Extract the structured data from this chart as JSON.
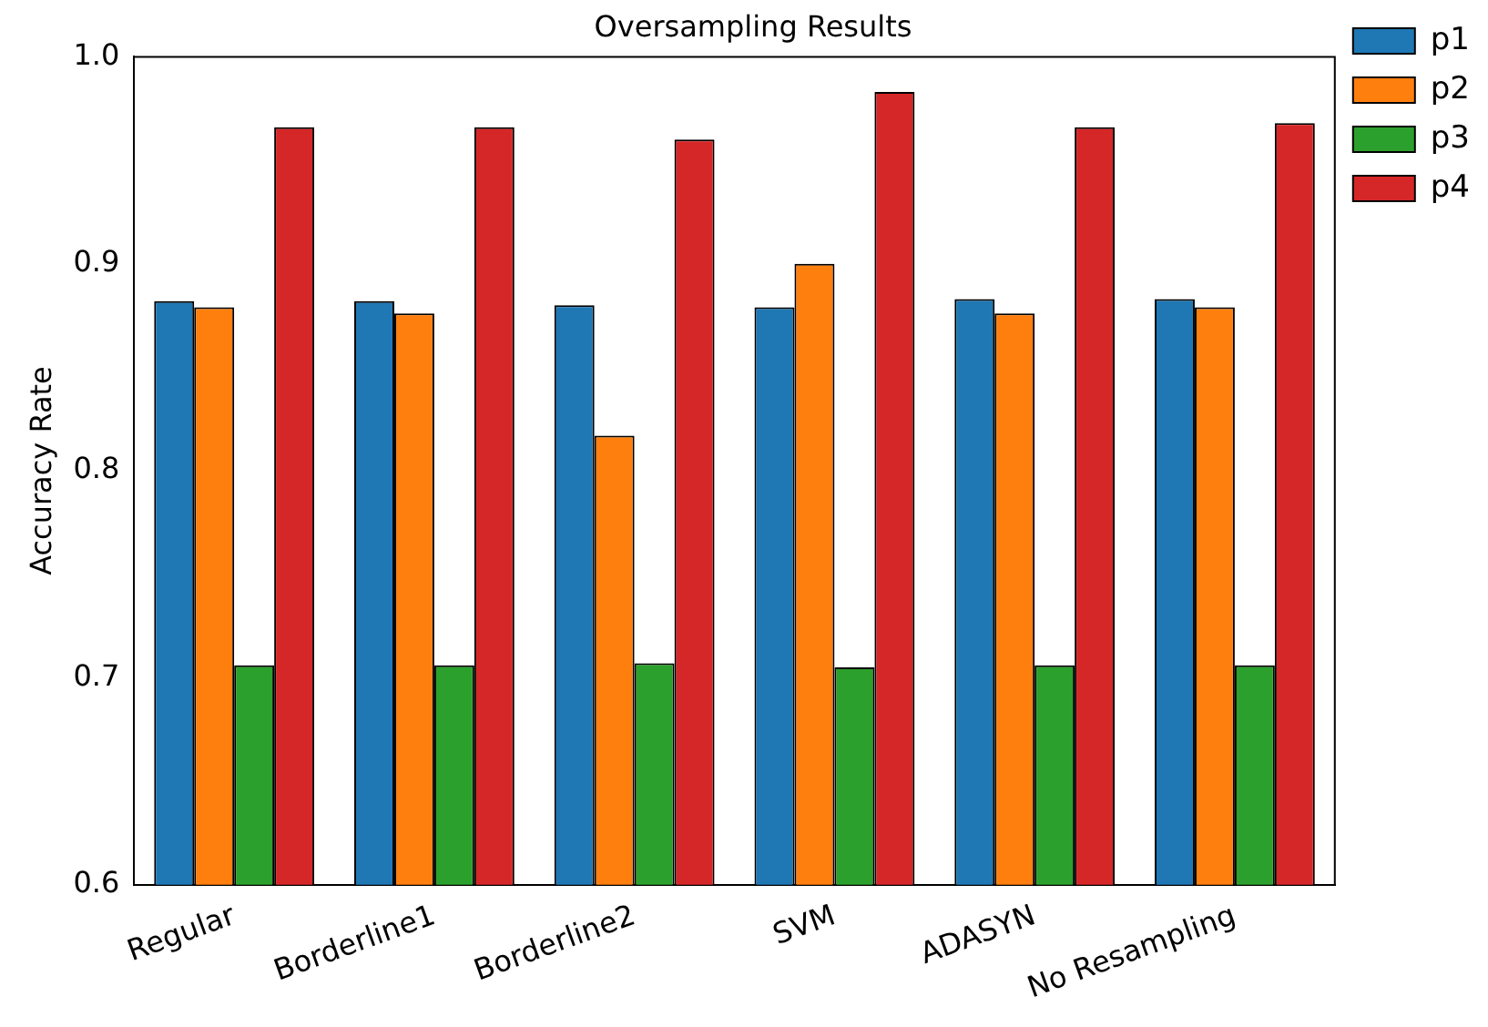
{
  "chart_data": {
    "type": "bar",
    "title": "Oversampling Results",
    "ylabel": "Accuracy Rate",
    "categories": [
      "Regular",
      "Borderline1",
      "Borderline2",
      "SVM",
      "ADASYN",
      "No Resampling"
    ],
    "series": [
      {
        "name": "p1",
        "color": "#1f77b4",
        "values": [
          0.882,
          0.882,
          0.88,
          0.879,
          0.883,
          0.883
        ]
      },
      {
        "name": "p2",
        "color": "#ff7f0e",
        "values": [
          0.879,
          0.876,
          0.817,
          0.9,
          0.876,
          0.879
        ]
      },
      {
        "name": "p3",
        "color": "#2ca02c",
        "values": [
          0.706,
          0.706,
          0.707,
          0.705,
          0.706,
          0.706
        ]
      },
      {
        "name": "p4",
        "color": "#d62728",
        "values": [
          0.966,
          0.966,
          0.96,
          0.983,
          0.966,
          0.968
        ]
      }
    ],
    "ylim": [
      0.6,
      1.0
    ],
    "yticks": [
      {
        "value": 0.6,
        "label": "0.6"
      },
      {
        "value": 0.7,
        "label": "0.7"
      },
      {
        "value": 0.8,
        "label": "0.8"
      },
      {
        "value": 0.9,
        "label": "0.9"
      },
      {
        "value": 1,
        "label": "1.0"
      }
    ],
    "grid": false,
    "legend": "right"
  }
}
